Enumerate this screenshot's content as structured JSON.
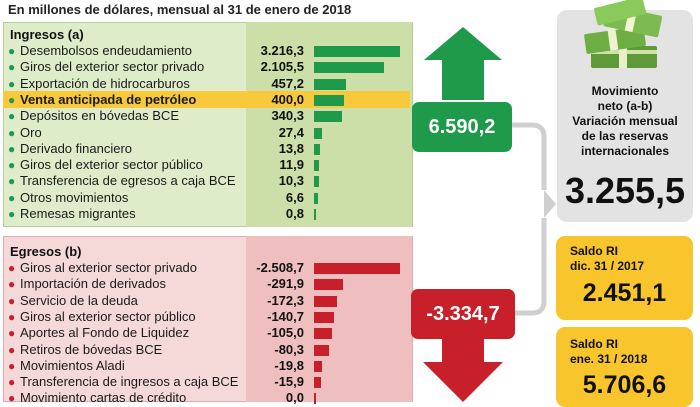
{
  "subtitle": "En millones de dólares, mensual al 31 de enero de 2018",
  "ingresos": {
    "title": "Ingresos (a)",
    "total": "6.590,2",
    "items": [
      {
        "label": "Desembolsos endeudamiento",
        "value": "3.216,3",
        "amount": 3216.3
      },
      {
        "label": "Giros del exterior sector privado",
        "value": "2.105,5",
        "amount": 2105.5
      },
      {
        "label": "Exportación de hidrocarburos",
        "value": "457,2",
        "amount": 457.2
      },
      {
        "label": "Venta anticipada de petróleo",
        "value": "400,0",
        "amount": 400.0
      },
      {
        "label": "Depósitos en bóvedas BCE",
        "value": "340,3",
        "amount": 340.3
      },
      {
        "label": "Oro",
        "value": "27,4",
        "amount": 27.4
      },
      {
        "label": "Derivado financiero",
        "value": "13,8",
        "amount": 13.8
      },
      {
        "label": "Giros del exterior sector público",
        "value": "11,9",
        "amount": 11.9
      },
      {
        "label": "Transferencia de egresos a caja BCE",
        "value": "10,3",
        "amount": 10.3
      },
      {
        "label": "Otros movimientos",
        "value": "6,6",
        "amount": 6.6
      },
      {
        "label": "Remesas migrantes",
        "value": "0,8",
        "amount": 0.8
      }
    ]
  },
  "egresos": {
    "title": "Egresos (b)",
    "total": "-3.334,7",
    "items": [
      {
        "label": "Giros al exterior sector privado",
        "value": "-2.508,7",
        "amount": -2508.7
      },
      {
        "label": "Importación de derivados",
        "value": "-291,9",
        "amount": -291.9
      },
      {
        "label": "Servicio de la deuda",
        "value": "-172,3",
        "amount": -172.3
      },
      {
        "label": "Giros al exterior sector público",
        "value": "-140,7",
        "amount": -140.7
      },
      {
        "label": "Aportes al Fondo de Liquidez",
        "value": "-105,0",
        "amount": -105.0
      },
      {
        "label": "Retiros de bóvedas BCE",
        "value": "-80,3",
        "amount": -80.3
      },
      {
        "label": "Movimientos Aladi",
        "value": "-19,8",
        "amount": -19.8
      },
      {
        "label": "Transferencia de ingresos a caja BCE",
        "value": "-15,9",
        "amount": -15.9
      },
      {
        "label": "Movimiento cartas de crédito",
        "value": "0,0",
        "amount": 0.0
      }
    ]
  },
  "movimiento": {
    "title_lines": [
      "Movimiento",
      "neto (a-b)",
      "Variación mensual",
      "de las reservas",
      "internacionales"
    ],
    "value": "3.255,5"
  },
  "saldo_dic": {
    "line1": "Saldo RI",
    "line2": "dic. 31 / 2017",
    "value": "2.451,1"
  },
  "saldo_ene": {
    "line1": "Saldo RI",
    "line2": "ene. 31 / 2018",
    "value": "5.706,6"
  },
  "highlight_index": 3,
  "colors": {
    "green": "#1f9a4a",
    "red": "#c8202a",
    "highlight": "#f7c93b",
    "yellow": "#f8c62c",
    "grey": "#e3e3e3"
  },
  "chart_data": [
    {
      "type": "bar",
      "title": "Ingresos (a)",
      "categories": [
        "Desembolsos endeudamiento",
        "Giros del exterior sector privado",
        "Exportación de hidrocarburos",
        "Venta anticipada de petróleo",
        "Depósitos en bóvedas BCE",
        "Oro",
        "Derivado financiero",
        "Giros del exterior sector público",
        "Transferencia de egresos a caja BCE",
        "Otros movimientos",
        "Remesas migrantes"
      ],
      "values": [
        3216.3,
        2105.5,
        457.2,
        400.0,
        340.3,
        27.4,
        13.8,
        11.9,
        10.3,
        6.6,
        0.8
      ]
    },
    {
      "type": "bar",
      "title": "Egresos (b)",
      "categories": [
        "Giros al exterior sector privado",
        "Importación de derivados",
        "Servicio de la deuda",
        "Giros al exterior sector público",
        "Aportes al Fondo de Liquidez",
        "Retiros de bóvedas BCE",
        "Movimientos Aladi",
        "Transferencia de ingresos a caja BCE",
        "Movimiento cartas de crédito"
      ],
      "values": [
        -2508.7,
        -291.9,
        -172.3,
        -140.7,
        -105.0,
        -80.3,
        -19.8,
        -15.9,
        0.0
      ]
    }
  ]
}
